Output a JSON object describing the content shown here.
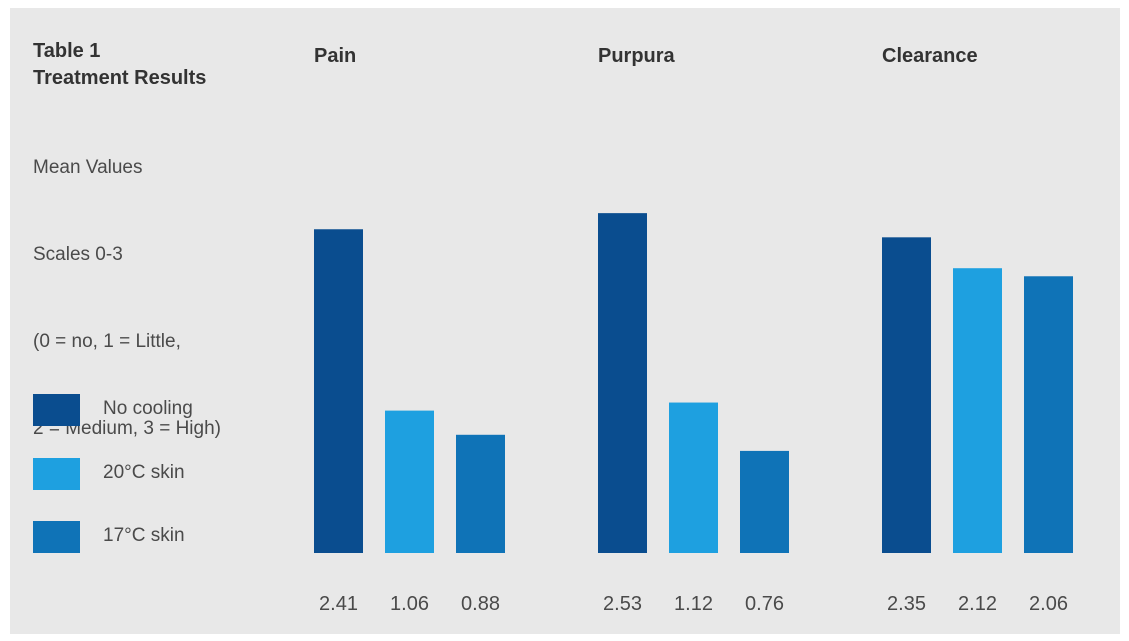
{
  "table_title": [
    "Table 1",
    "Treatment Results"
  ],
  "notes": [
    "Mean Values",
    "Scales 0-3",
    "(0 = no, 1 = Little,",
    "2 = Medium, 3 = High)"
  ],
  "colors": {
    "background": "#e8e8e8",
    "no_cooling": "#0a4d8f",
    "skin_20": "#1ea0e0",
    "skin_17": "#0f73b7"
  },
  "chart_data": {
    "type": "bar",
    "title": "",
    "categories": [
      "Pain",
      "Purpura",
      "Clearance"
    ],
    "series": [
      {
        "name": "No cooling",
        "values": [
          2.41,
          2.53,
          2.35
        ],
        "color": "#0a4d8f"
      },
      {
        "name": "20°C skin",
        "values": [
          1.06,
          1.12,
          2.12
        ],
        "color": "#1ea0e0"
      },
      {
        "name": "17°C skin",
        "values": [
          0.88,
          0.76,
          2.06
        ],
        "color": "#0f73b7"
      }
    ],
    "value_labels": [
      [
        "2.41",
        "1.06",
        "0.88"
      ],
      [
        "2.53",
        "1.12",
        "0.76"
      ],
      [
        "2.35",
        "2.12",
        "2.06"
      ]
    ],
    "ylim": [
      0,
      3
    ],
    "grid": false,
    "legend_position": "left"
  }
}
